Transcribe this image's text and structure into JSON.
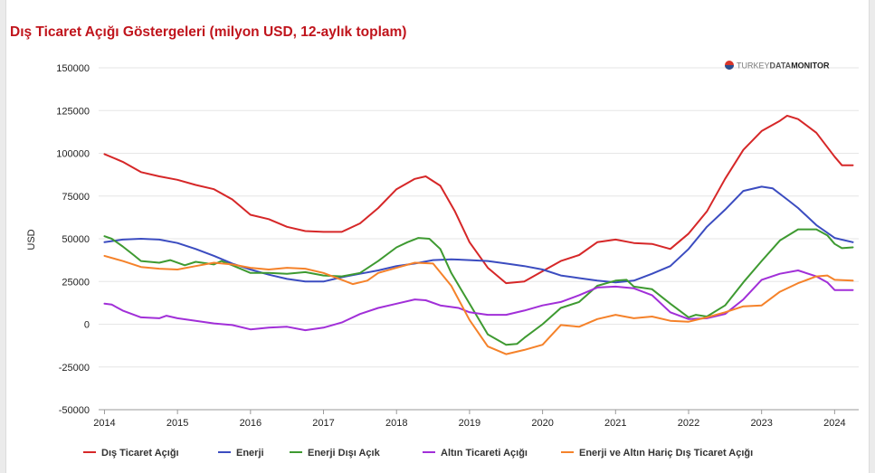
{
  "chart_data": {
    "type": "line",
    "title": "Dış Ticaret Açığı Göstergeleri (milyon USD, 12-aylık toplam)",
    "ylabel": "USD",
    "xlabel": "",
    "ylim": [
      -50000,
      150000
    ],
    "xlim": [
      2013.92,
      2024.33
    ],
    "yticks": [
      -50000,
      -25000,
      0,
      25000,
      50000,
      75000,
      100000,
      125000,
      150000
    ],
    "ytick_labels": [
      "-50000",
      "-25000",
      "0",
      "25000",
      "50000",
      "75000",
      "100000",
      "125000",
      "150000"
    ],
    "xticks": [
      2014,
      2015,
      2016,
      2017,
      2018,
      2019,
      2020,
      2021,
      2022,
      2023,
      2024
    ],
    "xtick_labels": [
      "2014",
      "2015",
      "2016",
      "2017",
      "2018",
      "2019",
      "2020",
      "2021",
      "2022",
      "2023",
      "2024"
    ],
    "grid": "horizontal",
    "legend_position": "bottom",
    "series": [
      {
        "name": "Dış Ticaret Açığı",
        "color": "#d62728",
        "points": [
          [
            2014.0,
            99500
          ],
          [
            2014.25,
            95000
          ],
          [
            2014.5,
            89000
          ],
          [
            2014.75,
            86500
          ],
          [
            2015.0,
            84500
          ],
          [
            2015.25,
            81500
          ],
          [
            2015.5,
            79000
          ],
          [
            2015.75,
            73000
          ],
          [
            2016.0,
            64000
          ],
          [
            2016.25,
            61500
          ],
          [
            2016.5,
            57000
          ],
          [
            2016.75,
            54500
          ],
          [
            2017.0,
            54000
          ],
          [
            2017.25,
            54000
          ],
          [
            2017.5,
            59000
          ],
          [
            2017.75,
            68000
          ],
          [
            2018.0,
            79000
          ],
          [
            2018.25,
            85000
          ],
          [
            2018.4,
            86500
          ],
          [
            2018.6,
            81000
          ],
          [
            2018.8,
            66000
          ],
          [
            2019.0,
            48000
          ],
          [
            2019.25,
            33000
          ],
          [
            2019.5,
            24000
          ],
          [
            2019.75,
            25000
          ],
          [
            2020.0,
            31000
          ],
          [
            2020.25,
            37000
          ],
          [
            2020.5,
            40500
          ],
          [
            2020.75,
            48000
          ],
          [
            2021.0,
            49500
          ],
          [
            2021.25,
            47500
          ],
          [
            2021.5,
            47000
          ],
          [
            2021.75,
            44000
          ],
          [
            2022.0,
            53000
          ],
          [
            2022.25,
            66000
          ],
          [
            2022.5,
            85000
          ],
          [
            2022.75,
            102000
          ],
          [
            2023.0,
            113000
          ],
          [
            2023.25,
            119000
          ],
          [
            2023.35,
            122000
          ],
          [
            2023.5,
            120000
          ],
          [
            2023.75,
            112000
          ],
          [
            2024.0,
            98000
          ],
          [
            2024.1,
            93000
          ],
          [
            2024.25,
            93000
          ]
        ]
      },
      {
        "name": "Enerji",
        "color": "#3b4cc0",
        "points": [
          [
            2014.0,
            48000
          ],
          [
            2014.25,
            49500
          ],
          [
            2014.5,
            50000
          ],
          [
            2014.75,
            49500
          ],
          [
            2015.0,
            47500
          ],
          [
            2015.25,
            44000
          ],
          [
            2015.5,
            40000
          ],
          [
            2015.75,
            35500
          ],
          [
            2016.0,
            32000
          ],
          [
            2016.25,
            29000
          ],
          [
            2016.5,
            26500
          ],
          [
            2016.75,
            25000
          ],
          [
            2017.0,
            25000
          ],
          [
            2017.25,
            27500
          ],
          [
            2017.5,
            29500
          ],
          [
            2017.75,
            31500
          ],
          [
            2018.0,
            34000
          ],
          [
            2018.25,
            35500
          ],
          [
            2018.5,
            37500
          ],
          [
            2018.75,
            38000
          ],
          [
            2019.0,
            37500
          ],
          [
            2019.25,
            37000
          ],
          [
            2019.5,
            35500
          ],
          [
            2019.75,
            34000
          ],
          [
            2020.0,
            32000
          ],
          [
            2020.25,
            28500
          ],
          [
            2020.5,
            27000
          ],
          [
            2020.75,
            25500
          ],
          [
            2021.0,
            24500
          ],
          [
            2021.25,
            25500
          ],
          [
            2021.5,
            29500
          ],
          [
            2021.75,
            34000
          ],
          [
            2022.0,
            44000
          ],
          [
            2022.25,
            57000
          ],
          [
            2022.5,
            67000
          ],
          [
            2022.75,
            78000
          ],
          [
            2023.0,
            80500
          ],
          [
            2023.15,
            79500
          ],
          [
            2023.35,
            73000
          ],
          [
            2023.5,
            68000
          ],
          [
            2023.75,
            58000
          ],
          [
            2024.0,
            50500
          ],
          [
            2024.25,
            48000
          ]
        ]
      },
      {
        "name": "Enerji Dışı Açık",
        "color": "#3e9a31",
        "points": [
          [
            2014.0,
            51500
          ],
          [
            2014.1,
            50000
          ],
          [
            2014.25,
            45500
          ],
          [
            2014.4,
            40500
          ],
          [
            2014.5,
            37000
          ],
          [
            2014.75,
            36000
          ],
          [
            2014.9,
            37500
          ],
          [
            2015.1,
            34500
          ],
          [
            2015.25,
            36500
          ],
          [
            2015.5,
            35000
          ],
          [
            2015.6,
            37000
          ],
          [
            2015.75,
            34500
          ],
          [
            2016.0,
            30000
          ],
          [
            2016.25,
            30000
          ],
          [
            2016.5,
            29500
          ],
          [
            2016.75,
            30500
          ],
          [
            2017.0,
            28500
          ],
          [
            2017.25,
            28000
          ],
          [
            2017.5,
            30000
          ],
          [
            2017.75,
            37000
          ],
          [
            2018.0,
            45000
          ],
          [
            2018.15,
            48000
          ],
          [
            2018.3,
            50500
          ],
          [
            2018.45,
            50000
          ],
          [
            2018.6,
            44000
          ],
          [
            2018.75,
            30000
          ],
          [
            2019.0,
            12000
          ],
          [
            2019.25,
            -6000
          ],
          [
            2019.5,
            -12000
          ],
          [
            2019.65,
            -11500
          ],
          [
            2019.75,
            -8000
          ],
          [
            2020.0,
            0
          ],
          [
            2020.25,
            9500
          ],
          [
            2020.5,
            13000
          ],
          [
            2020.75,
            22500
          ],
          [
            2021.0,
            25500
          ],
          [
            2021.15,
            26000
          ],
          [
            2021.25,
            22000
          ],
          [
            2021.5,
            20500
          ],
          [
            2021.75,
            12000
          ],
          [
            2022.0,
            4000
          ],
          [
            2022.1,
            5500
          ],
          [
            2022.25,
            4500
          ],
          [
            2022.5,
            11000
          ],
          [
            2022.75,
            24500
          ],
          [
            2023.0,
            37000
          ],
          [
            2023.25,
            49000
          ],
          [
            2023.5,
            55500
          ],
          [
            2023.75,
            55500
          ],
          [
            2023.9,
            52000
          ],
          [
            2024.0,
            47000
          ],
          [
            2024.1,
            44500
          ],
          [
            2024.25,
            45000
          ]
        ]
      },
      {
        "name": "Altın Ticareti Açığı",
        "color": "#a12fd8",
        "points": [
          [
            2014.0,
            12000
          ],
          [
            2014.1,
            11500
          ],
          [
            2014.25,
            8000
          ],
          [
            2014.5,
            4000
          ],
          [
            2014.75,
            3500
          ],
          [
            2014.85,
            5000
          ],
          [
            2015.0,
            3500
          ],
          [
            2015.25,
            2000
          ],
          [
            2015.5,
            500
          ],
          [
            2015.75,
            -500
          ],
          [
            2016.0,
            -3000
          ],
          [
            2016.25,
            -2000
          ],
          [
            2016.5,
            -1500
          ],
          [
            2016.75,
            -3500
          ],
          [
            2017.0,
            -2000
          ],
          [
            2017.25,
            1000
          ],
          [
            2017.5,
            6000
          ],
          [
            2017.75,
            9500
          ],
          [
            2018.0,
            12000
          ],
          [
            2018.25,
            14500
          ],
          [
            2018.4,
            14000
          ],
          [
            2018.6,
            11000
          ],
          [
            2018.85,
            9500
          ],
          [
            2019.0,
            7000
          ],
          [
            2019.25,
            5500
          ],
          [
            2019.5,
            5500
          ],
          [
            2019.75,
            8000
          ],
          [
            2020.0,
            11000
          ],
          [
            2020.25,
            13000
          ],
          [
            2020.5,
            17000
          ],
          [
            2020.75,
            21500
          ],
          [
            2021.0,
            22000
          ],
          [
            2021.25,
            21000
          ],
          [
            2021.5,
            17000
          ],
          [
            2021.75,
            7000
          ],
          [
            2022.0,
            3000
          ],
          [
            2022.25,
            3500
          ],
          [
            2022.5,
            6000
          ],
          [
            2022.75,
            14500
          ],
          [
            2023.0,
            26000
          ],
          [
            2023.25,
            29500
          ],
          [
            2023.5,
            31500
          ],
          [
            2023.75,
            28000
          ],
          [
            2023.9,
            24500
          ],
          [
            2024.0,
            20000
          ],
          [
            2024.25,
            20000
          ]
        ]
      },
      {
        "name": "Enerji ve Altın Hariç Dış Ticaret Açığı",
        "color": "#f5822a",
        "points": [
          [
            2014.0,
            40000
          ],
          [
            2014.25,
            37000
          ],
          [
            2014.5,
            33500
          ],
          [
            2014.75,
            32500
          ],
          [
            2015.0,
            32000
          ],
          [
            2015.25,
            34000
          ],
          [
            2015.5,
            36000
          ],
          [
            2015.75,
            35000
          ],
          [
            2016.0,
            33000
          ],
          [
            2016.25,
            32000
          ],
          [
            2016.5,
            33000
          ],
          [
            2016.75,
            32500
          ],
          [
            2017.0,
            30000
          ],
          [
            2017.25,
            26000
          ],
          [
            2017.4,
            23500
          ],
          [
            2017.6,
            25500
          ],
          [
            2017.75,
            30000
          ],
          [
            2018.0,
            33000
          ],
          [
            2018.25,
            36000
          ],
          [
            2018.5,
            35500
          ],
          [
            2018.75,
            22500
          ],
          [
            2019.0,
            2500
          ],
          [
            2019.25,
            -13000
          ],
          [
            2019.5,
            -17500
          ],
          [
            2019.75,
            -15000
          ],
          [
            2020.0,
            -12000
          ],
          [
            2020.25,
            -500
          ],
          [
            2020.5,
            -1500
          ],
          [
            2020.75,
            3000
          ],
          [
            2021.0,
            5500
          ],
          [
            2021.25,
            3500
          ],
          [
            2021.5,
            4500
          ],
          [
            2021.75,
            2000
          ],
          [
            2022.0,
            1500
          ],
          [
            2022.25,
            4000
          ],
          [
            2022.5,
            7000
          ],
          [
            2022.75,
            10500
          ],
          [
            2023.0,
            11000
          ],
          [
            2023.25,
            19000
          ],
          [
            2023.5,
            24000
          ],
          [
            2023.75,
            28000
          ],
          [
            2023.9,
            28500
          ],
          [
            2024.0,
            26000
          ],
          [
            2024.25,
            25500
          ]
        ]
      }
    ]
  },
  "branding": {
    "logo_regular": "TURKEY",
    "logo_medium": "DATA",
    "logo_bold": "MONITOR"
  }
}
